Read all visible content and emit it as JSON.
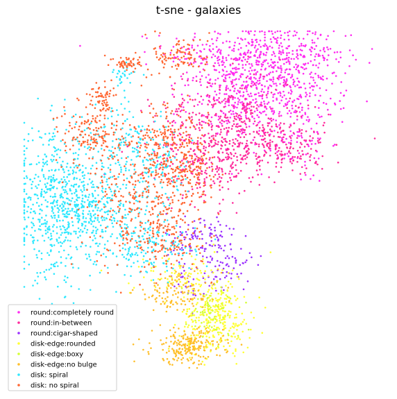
{
  "chart_data": {
    "type": "scatter",
    "title": "t-sne - galaxies",
    "xlabel": "",
    "ylabel": "",
    "axes_visible": false,
    "grid": false,
    "legend_position": "lower-left",
    "series": [
      {
        "name": "round:completely round",
        "color": "#ff2cf0",
        "clusters": [
          {
            "cx": 0.15,
            "cy": 0.43,
            "sx": 0.12,
            "sy": 0.04,
            "n": 320
          },
          {
            "cx": 0.28,
            "cy": 0.36,
            "sx": 0.07,
            "sy": 0.06,
            "n": 260
          },
          {
            "cx": 0.14,
            "cy": 0.28,
            "sx": 0.09,
            "sy": 0.05,
            "n": 220
          },
          {
            "cx": 0.1,
            "cy": 0.36,
            "sx": 0.06,
            "sy": 0.05,
            "n": 150
          },
          {
            "cx": 0.27,
            "cy": 0.18,
            "sx": 0.05,
            "sy": 0.06,
            "n": 90
          }
        ]
      },
      {
        "name": "round:in-between",
        "color": "#ff2a9c",
        "clusters": [
          {
            "cx": 0.12,
            "cy": 0.17,
            "sx": 0.12,
            "sy": 0.04,
            "n": 320
          },
          {
            "cx": 0.08,
            "cy": 0.26,
            "sx": 0.1,
            "sy": 0.06,
            "n": 240
          },
          {
            "cx": 0.02,
            "cy": 0.1,
            "sx": 0.06,
            "sy": 0.05,
            "n": 140
          },
          {
            "cx": 0.28,
            "cy": 0.16,
            "sx": 0.04,
            "sy": 0.04,
            "n": 60
          }
        ]
      },
      {
        "name": "round:cigar-shaped",
        "color": "#9b30ff",
        "clusters": [
          {
            "cx": 0.01,
            "cy": -0.1,
            "sx": 0.05,
            "sy": 0.04,
            "n": 110
          },
          {
            "cx": 0.09,
            "cy": -0.18,
            "sx": 0.03,
            "sy": 0.03,
            "n": 50
          },
          {
            "cx": -0.02,
            "cy": -0.22,
            "sx": 0.03,
            "sy": 0.03,
            "n": 30
          }
        ]
      },
      {
        "name": "disk-edge:rounded",
        "color": "#ffff33",
        "clusters": [
          {
            "cx": 0.05,
            "cy": -0.32,
            "sx": 0.05,
            "sy": 0.05,
            "n": 300
          },
          {
            "cx": -0.05,
            "cy": -0.2,
            "sx": 0.07,
            "sy": 0.03,
            "n": 90
          }
        ]
      },
      {
        "name": "disk-edge:boxy",
        "color": "#d4ff33",
        "clusters": [
          {
            "cx": 0.04,
            "cy": -0.3,
            "sx": 0.04,
            "sy": 0.04,
            "n": 70
          }
        ]
      },
      {
        "name": "disk-edge:no bulge",
        "color": "#ffbf2a",
        "clusters": [
          {
            "cx": -0.03,
            "cy": -0.4,
            "sx": 0.05,
            "sy": 0.025,
            "n": 220
          },
          {
            "cx": -0.06,
            "cy": -0.25,
            "sx": 0.06,
            "sy": 0.03,
            "n": 120
          }
        ]
      },
      {
        "name": "disk: spiral",
        "color": "#2ee8ff",
        "clusters": [
          {
            "cx": -0.4,
            "cy": 0.0,
            "sx": 0.06,
            "sy": 0.1,
            "n": 550
          },
          {
            "cx": -0.28,
            "cy": -0.02,
            "sx": 0.07,
            "sy": 0.07,
            "n": 300
          },
          {
            "cx": -0.2,
            "cy": 0.16,
            "sx": 0.06,
            "sy": 0.06,
            "n": 150
          },
          {
            "cx": -0.13,
            "cy": -0.12,
            "sx": 0.06,
            "sy": 0.04,
            "n": 140
          },
          {
            "cx": -0.22,
            "cy": 0.36,
            "sx": 0.02,
            "sy": 0.02,
            "n": 30
          },
          {
            "cx": -0.1,
            "cy": 0.1,
            "sx": 0.04,
            "sy": 0.05,
            "n": 70
          }
        ]
      },
      {
        "name": "disk: no spiral",
        "color": "#ff6632",
        "clusters": [
          {
            "cx": -0.15,
            "cy": 0.03,
            "sx": 0.08,
            "sy": 0.1,
            "n": 360
          },
          {
            "cx": -0.08,
            "cy": 0.17,
            "sx": 0.05,
            "sy": 0.06,
            "n": 170
          },
          {
            "cx": -0.3,
            "cy": 0.2,
            "sx": 0.05,
            "sy": 0.04,
            "n": 150
          },
          {
            "cx": -0.28,
            "cy": 0.3,
            "sx": 0.02,
            "sy": 0.02,
            "n": 60
          },
          {
            "cx": -0.05,
            "cy": 0.42,
            "sx": 0.04,
            "sy": 0.03,
            "n": 100
          },
          {
            "cx": -0.2,
            "cy": 0.4,
            "sx": 0.02,
            "sy": 0.01,
            "n": 60
          },
          {
            "cx": -0.02,
            "cy": 0.1,
            "sx": 0.04,
            "sy": 0.06,
            "n": 110
          },
          {
            "cx": -0.08,
            "cy": -0.1,
            "sx": 0.05,
            "sy": 0.04,
            "n": 110
          }
        ]
      }
    ]
  }
}
